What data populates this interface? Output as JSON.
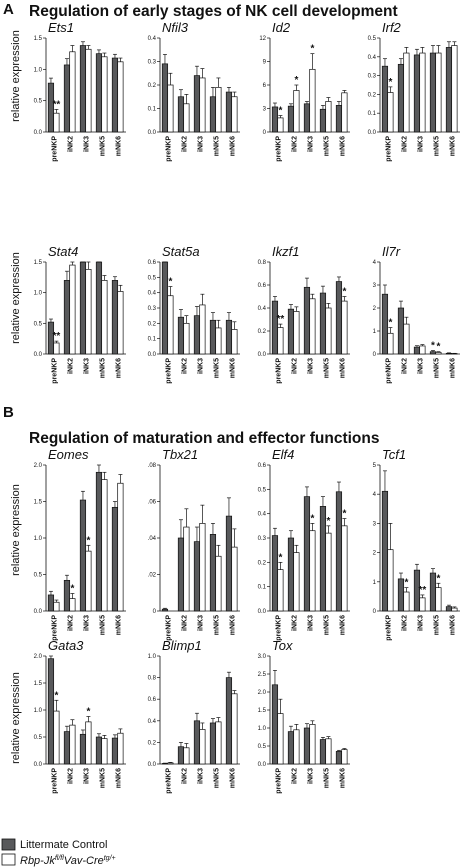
{
  "panels": [
    {
      "letter": "A",
      "title": "Regulation of early stages of NK cell development"
    },
    {
      "letter": "B",
      "title": "Regulation of maturation and effector functions"
    }
  ],
  "ylabel": "relative expression",
  "legend": [
    {
      "label": "Littermate Control",
      "color": "#58595b"
    },
    {
      "label_main": "Rbp-Jk",
      "label_sup1": "fl/fl",
      "label_mid": "Vav-Cre",
      "label_sup2": "tg/+",
      "color": "#ffffff"
    }
  ],
  "colors": {
    "control": "#58595b",
    "knockout": "#ffffff",
    "stroke": "#111111"
  },
  "chart_data": [
    {
      "type": "bar",
      "title": "Ets1",
      "categories": [
        "preNKP",
        "iNK2",
        "iNK3",
        "mNK5",
        "mNK6"
      ],
      "ylim": [
        0,
        1.5
      ],
      "yticks": [
        "0.0",
        "0.5",
        "1.0",
        "1.5"
      ],
      "yticks_v": [
        0,
        0.5,
        1,
        1.5
      ],
      "series": [
        {
          "name": "Littermate Control",
          "values": [
            0.78,
            1.07,
            1.38,
            1.25,
            1.18
          ],
          "err": [
            0.08,
            0.1,
            0.06,
            0.06,
            0.06
          ]
        },
        {
          "name": "Rbp-Jk fl/fl Vav-Cre tg/+",
          "values": [
            0.3,
            1.28,
            1.32,
            1.2,
            1.12
          ],
          "err": [
            0.06,
            0.1,
            0.06,
            0.06,
            0.06
          ]
        }
      ],
      "stars": [
        {
          "i": 0,
          "s": 1,
          "text": "**"
        }
      ]
    },
    {
      "type": "bar",
      "title": "Nfil3",
      "categories": [
        "preNKP",
        "iNK2",
        "iNK3",
        "mNK5",
        "mNK6"
      ],
      "ylim": [
        0,
        0.4
      ],
      "yticks": [
        "0.0",
        "0.1",
        "0.2",
        "0.3",
        "0.4"
      ],
      "yticks_v": [
        0,
        0.1,
        0.2,
        0.3,
        0.4
      ],
      "series": [
        {
          "name": "Littermate Control",
          "values": [
            0.29,
            0.15,
            0.24,
            0.15,
            0.17
          ],
          "err": [
            0.04,
            0.03,
            0.04,
            0.04,
            0.02
          ]
        },
        {
          "name": "Rbp-Jk fl/fl Vav-Cre tg/+",
          "values": [
            0.2,
            0.12,
            0.23,
            0.19,
            0.15
          ],
          "err": [
            0.05,
            0.04,
            0.04,
            0.04,
            0.02
          ]
        }
      ],
      "stars": []
    },
    {
      "type": "bar",
      "title": "Id2",
      "categories": [
        "preNKP",
        "iNK2",
        "iNK3",
        "mNK5",
        "mNK6"
      ],
      "ylim": [
        0,
        12
      ],
      "yticks": [
        "0",
        "3",
        "6",
        "9",
        "12"
      ],
      "yticks_v": [
        0,
        3,
        6,
        9,
        12
      ],
      "series": [
        {
          "name": "Littermate Control",
          "values": [
            3.2,
            3.3,
            3.6,
            2.9,
            3.4
          ],
          "err": [
            0.5,
            0.3,
            0.3,
            0.5,
            0.5
          ]
        },
        {
          "name": "Rbp-Jk fl/fl Vav-Cre tg/+",
          "values": [
            1.8,
            5.3,
            8.0,
            3.9,
            5.0
          ],
          "err": [
            0.3,
            0.7,
            2.0,
            0.5,
            0.3
          ]
        }
      ],
      "stars": [
        {
          "i": 0,
          "s": 1,
          "text": "*"
        },
        {
          "i": 1,
          "s": 1,
          "text": "*"
        },
        {
          "i": 2,
          "s": 1,
          "text": "*"
        }
      ]
    },
    {
      "type": "bar",
      "title": "Irf2",
      "categories": [
        "preNKP",
        "iNK2",
        "iNK3",
        "mNK5",
        "mNK6"
      ],
      "ylim": [
        0,
        0.5
      ],
      "yticks": [
        "0.0",
        "0.1",
        "0.2",
        "0.3",
        "0.4",
        "0.5"
      ],
      "yticks_v": [
        0,
        0.1,
        0.2,
        0.3,
        0.4,
        0.5
      ],
      "series": [
        {
          "name": "Littermate Control",
          "values": [
            0.35,
            0.36,
            0.41,
            0.42,
            0.45
          ],
          "err": [
            0.04,
            0.03,
            0.03,
            0.04,
            0.03
          ]
        },
        {
          "name": "Rbp-Jk fl/fl Vav-Cre tg/+",
          "values": [
            0.21,
            0.42,
            0.42,
            0.42,
            0.46
          ],
          "err": [
            0.03,
            0.03,
            0.03,
            0.04,
            0.02
          ]
        }
      ],
      "stars": [
        {
          "i": 0,
          "s": 1,
          "text": "*"
        }
      ]
    },
    {
      "type": "bar",
      "title": "Stat4",
      "categories": [
        "preNKP",
        "iNK2",
        "iNK3",
        "mNK5",
        "mNK6"
      ],
      "ylim": [
        0,
        1.5
      ],
      "yticks": [
        "0.0",
        "0.5",
        "1.0",
        "1.5"
      ],
      "yticks_v": [
        0,
        0.5,
        1,
        1.5
      ],
      "series": [
        {
          "name": "Littermate Control",
          "values": [
            0.52,
            1.2,
            1.52,
            1.57,
            1.2
          ],
          "err": [
            0.05,
            0.15,
            0.1,
            0.1,
            0.06
          ]
        },
        {
          "name": "Rbp-Jk fl/fl Vav-Cre tg/+",
          "values": [
            0.18,
            1.45,
            1.38,
            1.2,
            1.02
          ],
          "err": [
            0.03,
            0.06,
            0.15,
            0.08,
            0.1
          ]
        }
      ],
      "stars": [
        {
          "i": 0,
          "s": 1,
          "text": "**"
        }
      ]
    },
    {
      "type": "bar",
      "title": "Stat5a",
      "categories": [
        "preNKP",
        "iNK2",
        "iNK3",
        "mNK5",
        "mNK6"
      ],
      "ylim": [
        0,
        0.6
      ],
      "yticks": [
        "0.0",
        "0.1",
        "0.2",
        "0.3",
        "0.4",
        "0.5",
        "0.6"
      ],
      "yticks_v": [
        0,
        0.1,
        0.2,
        0.3,
        0.4,
        0.5,
        0.6
      ],
      "series": [
        {
          "name": "Littermate Control",
          "values": [
            0.6,
            0.24,
            0.25,
            0.22,
            0.22
          ],
          "err": [
            0.04,
            0.05,
            0.06,
            0.05,
            0.05
          ]
        },
        {
          "name": "Rbp-Jk fl/fl Vav-Cre tg/+",
          "values": [
            0.38,
            0.2,
            0.32,
            0.17,
            0.16
          ],
          "err": [
            0.06,
            0.05,
            0.07,
            0.05,
            0.05
          ]
        }
      ],
      "stars": [
        {
          "i": 0,
          "s": 1,
          "text": "*"
        }
      ]
    },
    {
      "type": "bar",
      "title": "Ikzf1",
      "categories": [
        "preNKP",
        "iNK2",
        "iNK3",
        "mNK5",
        "mNK6"
      ],
      "ylim": [
        0,
        0.8
      ],
      "yticks": [
        "0.0",
        "0.2",
        "0.4",
        "0.6",
        "0.8"
      ],
      "yticks_v": [
        0,
        0.2,
        0.4,
        0.6,
        0.8
      ],
      "series": [
        {
          "name": "Littermate Control",
          "values": [
            0.46,
            0.39,
            0.58,
            0.53,
            0.63
          ],
          "err": [
            0.04,
            0.04,
            0.08,
            0.06,
            0.04
          ]
        },
        {
          "name": "Rbp-Jk fl/fl Vav-Cre tg/+",
          "values": [
            0.23,
            0.37,
            0.48,
            0.4,
            0.46
          ],
          "err": [
            0.03,
            0.04,
            0.04,
            0.04,
            0.04
          ]
        }
      ],
      "stars": [
        {
          "i": 0,
          "s": 1,
          "text": "**"
        },
        {
          "i": 4,
          "s": 1,
          "text": "*"
        }
      ]
    },
    {
      "type": "bar",
      "title": "Il7r",
      "categories": [
        "preNKP",
        "iNK2",
        "iNK3",
        "mNK5",
        "mNK6"
      ],
      "ylim": [
        0,
        4
      ],
      "yticks": [
        "0",
        "1",
        "2",
        "3",
        "4"
      ],
      "yticks_v": [
        0,
        1,
        2,
        3,
        4
      ],
      "series": [
        {
          "name": "Littermate Control",
          "values": [
            2.6,
            2.0,
            0.3,
            0.1,
            0.03
          ],
          "err": [
            0.4,
            0.3,
            0.06,
            0.05,
            0.02
          ]
        },
        {
          "name": "Rbp-Jk fl/fl Vav-Cre tg/+",
          "values": [
            0.9,
            1.3,
            0.35,
            0.07,
            0.02
          ],
          "err": [
            0.25,
            0.3,
            0.06,
            0.03,
            0.01
          ]
        }
      ],
      "stars": [
        {
          "i": 0,
          "s": 1,
          "text": "*"
        },
        {
          "i": 3,
          "s": 0,
          "text": "*"
        },
        {
          "i": 3,
          "s": 1,
          "text": "*"
        }
      ]
    },
    {
      "type": "bar",
      "title": "Eomes",
      "categories": [
        "preNKP",
        "iNK2",
        "iNK3",
        "mNK5",
        "mNK6"
      ],
      "ylim": [
        0,
        2
      ],
      "yticks": [
        "0.0",
        "0.5",
        "1.0",
        "1.5",
        "2.0"
      ],
      "yticks_v": [
        0,
        0.5,
        1,
        1.5,
        2
      ],
      "series": [
        {
          "name": "Littermate Control",
          "values": [
            0.22,
            0.42,
            1.52,
            1.9,
            1.42
          ],
          "err": [
            0.05,
            0.07,
            0.12,
            0.1,
            0.08
          ]
        },
        {
          "name": "Rbp-Jk fl/fl Vav-Cre tg/+",
          "values": [
            0.12,
            0.17,
            0.82,
            1.8,
            1.75
          ],
          "err": [
            0.03,
            0.07,
            0.08,
            0.1,
            0.12
          ]
        }
      ],
      "stars": [
        {
          "i": 1,
          "s": 1,
          "text": "*"
        },
        {
          "i": 2,
          "s": 1,
          "text": "*"
        }
      ]
    },
    {
      "type": "bar",
      "title": "Tbx21",
      "categories": [
        "preNKP",
        "iNK2",
        "iNK3",
        "mNK5",
        "mNK6"
      ],
      "ylim": [
        0,
        0.08
      ],
      "yticks": [
        "0",
        ".02",
        ".04",
        ".06",
        ".08"
      ],
      "yticks_v": [
        0,
        0.02,
        0.04,
        0.06,
        0.08
      ],
      "series": [
        {
          "name": "Littermate Control",
          "values": [
            0.001,
            0.04,
            0.038,
            0.042,
            0.052
          ],
          "err": [
            0.0005,
            0.01,
            0.008,
            0.006,
            0.01
          ]
        },
        {
          "name": "Rbp-Jk fl/fl Vav-Cre tg/+",
          "values": [
            0,
            0.046,
            0.048,
            0.03,
            0.035
          ],
          "err": [
            0,
            0.01,
            0.01,
            0.006,
            0.01
          ]
        }
      ],
      "stars": []
    },
    {
      "type": "bar",
      "title": "Elf4",
      "categories": [
        "preNKP",
        "iNK2",
        "iNK3",
        "mNK5",
        "mNK6"
      ],
      "ylim": [
        0,
        0.6
      ],
      "yticks": [
        "0.0",
        "0.1",
        "0.2",
        "0.3",
        "0.4",
        "0.5",
        "0.6"
      ],
      "yticks_v": [
        0,
        0.1,
        0.2,
        0.3,
        0.4,
        0.5,
        0.6
      ],
      "series": [
        {
          "name": "Littermate Control",
          "values": [
            0.31,
            0.3,
            0.47,
            0.43,
            0.49
          ],
          "err": [
            0.03,
            0.03,
            0.04,
            0.04,
            0.04
          ]
        },
        {
          "name": "Rbp-Jk fl/fl Vav-Cre tg/+",
          "values": [
            0.17,
            0.24,
            0.33,
            0.32,
            0.35
          ],
          "err": [
            0.03,
            0.03,
            0.03,
            0.03,
            0.03
          ]
        }
      ],
      "stars": [
        {
          "i": 0,
          "s": 1,
          "text": "*"
        },
        {
          "i": 2,
          "s": 1,
          "text": "*"
        },
        {
          "i": 3,
          "s": 1,
          "text": "*"
        },
        {
          "i": 4,
          "s": 1,
          "text": "*"
        }
      ]
    },
    {
      "type": "bar",
      "title": "Tcf1",
      "categories": [
        "preNKP",
        "iNK2",
        "iNK3",
        "mNK5",
        "mNK6"
      ],
      "ylim": [
        0,
        5
      ],
      "yticks": [
        "0",
        "1",
        "2",
        "3",
        "4",
        "5"
      ],
      "yticks_v": [
        0,
        1,
        2,
        3,
        4,
        5
      ],
      "series": [
        {
          "name": "Littermate Control",
          "values": [
            4.1,
            1.1,
            1.4,
            1.3,
            0.15
          ],
          "err": [
            0.7,
            0.2,
            0.2,
            0.15,
            0.05
          ]
        },
        {
          "name": "Rbp-Jk fl/fl Vav-Cre tg/+",
          "values": [
            2.1,
            0.65,
            0.45,
            0.8,
            0.1
          ],
          "err": [
            0.9,
            0.15,
            0.1,
            0.15,
            0.04
          ]
        }
      ],
      "stars": [
        {
          "i": 1,
          "s": 1,
          "text": "*"
        },
        {
          "i": 2,
          "s": 1,
          "text": "**"
        },
        {
          "i": 3,
          "s": 1,
          "text": "*"
        }
      ]
    },
    {
      "type": "bar",
      "title": "Gata3",
      "categories": [
        "preNKP",
        "iNK2",
        "iNK3",
        "mNK5",
        "mNK6"
      ],
      "ylim": [
        0,
        2
      ],
      "yticks": [
        "0.0",
        "0.5",
        "1.0",
        "1.5",
        "2.0"
      ],
      "yticks_v": [
        0,
        0.5,
        1,
        1.5,
        2
      ],
      "series": [
        {
          "name": "Littermate Control",
          "values": [
            1.95,
            0.6,
            0.55,
            0.5,
            0.48
          ],
          "err": [
            0.15,
            0.1,
            0.08,
            0.06,
            0.06
          ]
        },
        {
          "name": "Rbp-Jk fl/fl Vav-Cre tg/+",
          "values": [
            0.98,
            0.72,
            0.78,
            0.47,
            0.57
          ],
          "err": [
            0.2,
            0.1,
            0.1,
            0.06,
            0.08
          ]
        }
      ],
      "stars": [
        {
          "i": 0,
          "s": 1,
          "text": "*"
        },
        {
          "i": 2,
          "s": 1,
          "text": "*"
        }
      ]
    },
    {
      "type": "bar",
      "title": "Blimp1",
      "categories": [
        "preNKP",
        "iNK2",
        "iNK3",
        "mNK5",
        "mNK6"
      ],
      "ylim": [
        0,
        1
      ],
      "yticks": [
        "0.0",
        "0.2",
        "0.4",
        "0.6",
        "0.8",
        "1.0"
      ],
      "yticks_v": [
        0,
        0.2,
        0.4,
        0.6,
        0.8,
        1
      ],
      "series": [
        {
          "name": "Littermate Control",
          "values": [
            0.005,
            0.16,
            0.4,
            0.38,
            0.8
          ],
          "err": [
            0.003,
            0.04,
            0.07,
            0.04,
            0.05
          ]
        },
        {
          "name": "Rbp-Jk fl/fl Vav-Cre tg/+",
          "values": [
            0.01,
            0.15,
            0.32,
            0.39,
            0.65
          ],
          "err": [
            0.005,
            0.04,
            0.06,
            0.04,
            0.03
          ]
        }
      ],
      "stars": []
    },
    {
      "type": "bar",
      "title": "Tox",
      "categories": [
        "preNKP",
        "iNK2",
        "iNK3",
        "mNK5",
        "mNK6"
      ],
      "ylim": [
        0,
        3
      ],
      "yticks": [
        "0.0",
        "0.5",
        "1.0",
        "1.5",
        "2.0",
        "2.5",
        "3.0"
      ],
      "yticks_v": [
        0,
        0.5,
        1,
        1.5,
        2,
        2.5,
        3
      ],
      "series": [
        {
          "name": "Littermate Control",
          "values": [
            2.2,
            0.9,
            1.0,
            0.68,
            0.35
          ],
          "err": [
            0.4,
            0.15,
            0.12,
            0.06,
            0.03
          ]
        },
        {
          "name": "Rbp-Jk fl/fl Vav-Cre tg/+",
          "values": [
            1.4,
            0.95,
            1.1,
            0.7,
            0.4
          ],
          "err": [
            0.4,
            0.15,
            0.1,
            0.06,
            0.03
          ]
        }
      ],
      "stars": []
    }
  ]
}
